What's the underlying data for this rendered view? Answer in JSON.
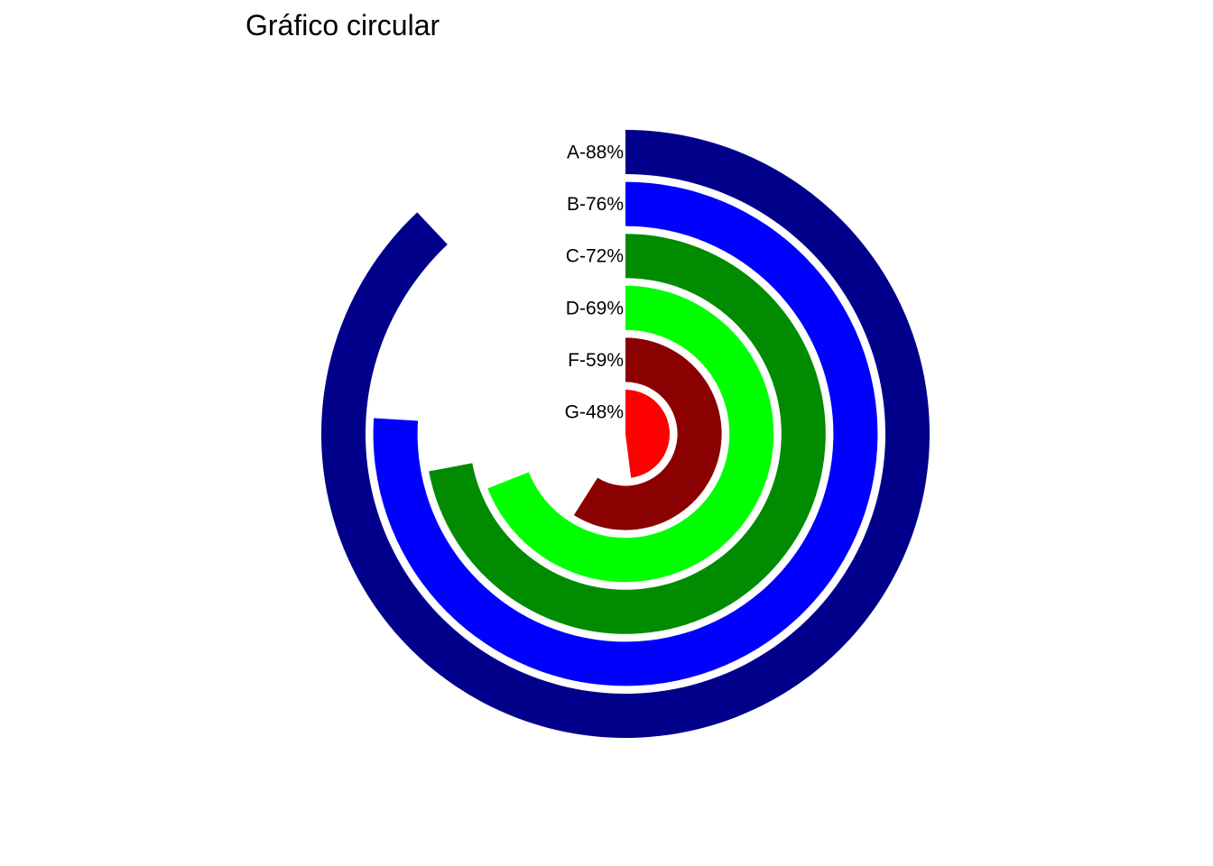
{
  "chart_data": {
    "type": "radial_bar",
    "title": "Gráfico circular",
    "xlabel": "",
    "ylabel": "",
    "ylim": [
      0,
      100
    ],
    "grid": false,
    "legend": "none",
    "series": [
      {
        "label": "A-88%",
        "value": 88,
        "color": "#00008B"
      },
      {
        "label": "B-76%",
        "value": 76,
        "color": "#0000FF"
      },
      {
        "label": "C-72%",
        "value": 72,
        "color": "#008B00"
      },
      {
        "label": "D-69%",
        "value": 69,
        "color": "#00FF00"
      },
      {
        "label": "F-59%",
        "value": 59,
        "color": "#8B0000"
      },
      {
        "label": "G-48%",
        "value": 48,
        "color": "#FF0000"
      }
    ]
  }
}
